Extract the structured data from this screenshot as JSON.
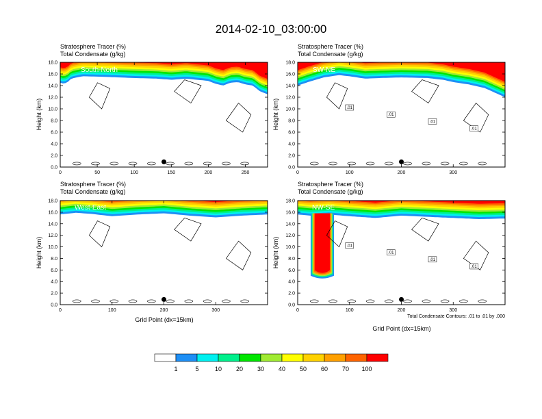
{
  "figure": {
    "title": "2014-02-10_03:00:00",
    "footnote": "Total Condensate Contours: .01 to .01 by .000"
  },
  "colorbar": {
    "colors": [
      "#ffffff",
      "#1e8ff5",
      "#00f0f0",
      "#00f08c",
      "#00e600",
      "#a0eb32",
      "#ffff00",
      "#ffd200",
      "#ffa000",
      "#ff6400",
      "#ff0000"
    ],
    "labels": [
      "1",
      "5",
      "10",
      "20",
      "30",
      "40",
      "50",
      "60",
      "70",
      "100"
    ]
  },
  "chart_data": [
    {
      "type": "heatmap",
      "panel_label": "South-North",
      "header_line1": "Stratosphere Tracer   (%)",
      "header_line2": "Total Condensate   (g/kg)",
      "xlabel": "",
      "ylabel": "Height (km)",
      "xlim": [
        0,
        280
      ],
      "ylim": [
        0,
        18
      ],
      "xticks": [
        "0",
        "50",
        "100",
        "150",
        "200",
        "250"
      ],
      "xtick_values": [
        0,
        50,
        100,
        150,
        200,
        250
      ],
      "yticks": [
        "0.0",
        "2.0",
        "4.0",
        "6.0",
        "8.0",
        "10.0",
        "12.0",
        "14.0",
        "16.0",
        "18.0"
      ],
      "marker_x": 140,
      "contour_labels": [],
      "tracer_profile_x": [
        0,
        5,
        10,
        15,
        30,
        60,
        100,
        130,
        150,
        170,
        200,
        210,
        220,
        230,
        240,
        250,
        260,
        270,
        280
      ],
      "tracer_profile_base_km": [
        14.5,
        14.3,
        14.6,
        15.2,
        15.6,
        15.5,
        15.3,
        15.2,
        15.0,
        15.2,
        14.8,
        14.3,
        14.0,
        14.5,
        14.6,
        14.2,
        14.0,
        13.0,
        12.5
      ]
    },
    {
      "type": "heatmap",
      "panel_label": "SW-NE",
      "header_line1": "Stratosphere Tracer   (%)",
      "header_line2": "Total Condensate   (g/kg)",
      "xlabel": "",
      "ylabel": "Height (km)",
      "xlim": [
        0,
        400
      ],
      "ylim": [
        0,
        18
      ],
      "xticks": [
        "0",
        "100",
        "200",
        "300"
      ],
      "xtick_values": [
        0,
        100,
        200,
        300
      ],
      "yticks": [
        "0.0",
        "2.0",
        "4.0",
        "6.0",
        "8.0",
        "10.0",
        "12.0",
        "14.0",
        "16.0",
        "18.0"
      ],
      "marker_x": 200,
      "contour_labels": [
        ".01",
        ".01",
        ".01",
        ".01"
      ],
      "tracer_profile_x": [
        0,
        20,
        50,
        80,
        100,
        130,
        160,
        200,
        250,
        280,
        300,
        330,
        360,
        380,
        400
      ],
      "tracer_profile_base_km": [
        14.0,
        14.6,
        15.4,
        15.8,
        15.6,
        15.2,
        15.3,
        15.4,
        15.3,
        15.0,
        14.6,
        14.2,
        13.6,
        12.8,
        12.0
      ]
    },
    {
      "type": "heatmap",
      "panel_label": "West-East",
      "header_line1": "Stratosphere Tracer   (%)",
      "header_line2": "Total Condensate   (g/kg)",
      "xlabel": "Grid Point (dx=15km)",
      "ylabel": "Height (km)",
      "xlim": [
        0,
        400
      ],
      "ylim": [
        0,
        18
      ],
      "xticks": [
        "0",
        "100",
        "200",
        "300"
      ],
      "xtick_values": [
        0,
        100,
        200,
        300
      ],
      "yticks": [
        "0.0",
        "2.0",
        "4.0",
        "6.0",
        "8.0",
        "10.0",
        "12.0",
        "14.0",
        "16.0",
        "18.0"
      ],
      "marker_x": 200,
      "contour_labels": [],
      "tracer_profile_x": [
        0,
        30,
        60,
        100,
        150,
        200,
        250,
        300,
        350,
        400
      ],
      "tracer_profile_base_km": [
        15.6,
        15.9,
        15.7,
        15.3,
        15.6,
        15.8,
        15.4,
        15.1,
        15.4,
        15.6
      ]
    },
    {
      "type": "heatmap",
      "panel_label": "NW-SE",
      "header_line1": "Stratosphere Tracer   (%)",
      "header_line2": "Total Condensate   (g/kg)",
      "xlabel": "Grid Point (dx=15km)",
      "ylabel": "Height (km)",
      "xlim": [
        0,
        400
      ],
      "ylim": [
        0,
        18
      ],
      "xticks": [
        "0",
        "100",
        "200",
        "300"
      ],
      "xtick_values": [
        0,
        100,
        200,
        300
      ],
      "yticks": [
        "0.0",
        "2.0",
        "4.0",
        "6.0",
        "8.0",
        "10.0",
        "12.0",
        "14.0",
        "16.0",
        "18.0"
      ],
      "marker_x": 200,
      "contour_labels": [
        ".01",
        ".01",
        ".01",
        ".01"
      ],
      "tracer_profile_x": [
        0,
        25,
        60,
        100,
        150,
        200,
        250,
        300,
        350,
        400
      ],
      "tracer_profile_base_km": [
        15.6,
        15.4,
        15.6,
        15.3,
        15.0,
        15.4,
        15.2,
        15.0,
        14.8,
        14.9
      ],
      "intrusion": {
        "x_range": [
          25,
          70
        ],
        "bottom_km": 5.0
      }
    }
  ]
}
